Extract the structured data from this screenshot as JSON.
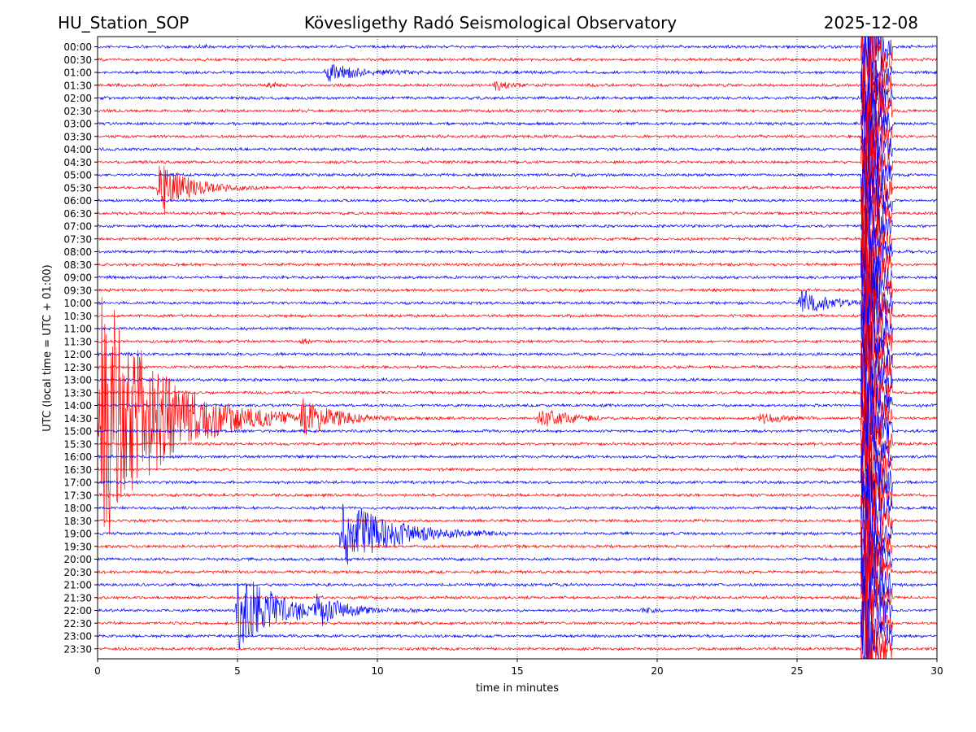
{
  "header": {
    "station": "HU_Station_SOP",
    "observatory": "Köveslige­thy Radó Seismological Observatory",
    "date": "2025-12-08"
  },
  "chart_data": {
    "type": "line",
    "title": "Köveslige­thy Radó Seismological Observatory",
    "xlabel": "time in minutes",
    "ylabel": "UTC (local time = UTC + 01:00)",
    "xlim": [
      0,
      30
    ],
    "xticks": [
      "0",
      "5",
      "10",
      "15",
      "20",
      "25",
      "30"
    ],
    "xtick_values": [
      0,
      5,
      10,
      15,
      20,
      25,
      30
    ],
    "grid": "vertical dotted",
    "series_colors": [
      "#0000ff",
      "#ff0000"
    ],
    "rows": [
      "00:00",
      "00:30",
      "01:00",
      "01:30",
      "02:00",
      "02:30",
      "03:00",
      "03:30",
      "04:00",
      "04:30",
      "05:00",
      "05:30",
      "06:00",
      "06:30",
      "07:00",
      "07:30",
      "08:00",
      "08:30",
      "09:00",
      "09:30",
      "10:00",
      "10:30",
      "11:00",
      "11:30",
      "12:00",
      "12:30",
      "13:00",
      "13:30",
      "14:00",
      "14:30",
      "15:00",
      "15:30",
      "16:00",
      "16:30",
      "17:00",
      "17:30",
      "18:00",
      "18:30",
      "19:00",
      "19:30",
      "20:00",
      "20:30",
      "21:00",
      "21:30",
      "22:00",
      "22:30",
      "23:00",
      "23:30"
    ],
    "base_noise": 1.5,
    "events": [
      {
        "row": "00:00",
        "start_min": 3.6,
        "duration_min": 0.3,
        "amplitude": 3,
        "decay_min": 0.2
      },
      {
        "row": "01:00",
        "start_min": 8.1,
        "duration_min": 3.5,
        "amplitude": 12,
        "decay_min": 1.2
      },
      {
        "row": "01:30",
        "start_min": 6.0,
        "duration_min": 0.8,
        "amplitude": 4,
        "decay_min": 0.4
      },
      {
        "row": "01:30",
        "start_min": 14.1,
        "duration_min": 1.3,
        "amplitude": 8,
        "decay_min": 0.5
      },
      {
        "row": "05:30",
        "start_min": 2.1,
        "duration_min": 4.0,
        "amplitude": 40,
        "decay_min": 1.0
      },
      {
        "row": "10:00",
        "start_min": 25.0,
        "duration_min": 2.3,
        "amplitude": 18,
        "decay_min": 1.0
      },
      {
        "row": "11:30",
        "start_min": 7.2,
        "duration_min": 0.8,
        "amplitude": 4,
        "decay_min": 0.4
      },
      {
        "row": "14:30",
        "start_min": 0.0,
        "duration_min": 14.0,
        "amplitude": 180,
        "decay_min": 2.0
      },
      {
        "row": "14:30",
        "start_min": 7.2,
        "duration_min": 2.5,
        "amplitude": 22,
        "decay_min": 1.0
      },
      {
        "row": "14:30",
        "start_min": 15.7,
        "duration_min": 2.3,
        "amplitude": 15,
        "decay_min": 1.0
      },
      {
        "row": "14:30",
        "start_min": 23.6,
        "duration_min": 2.0,
        "amplitude": 8,
        "decay_min": 0.8
      },
      {
        "row": "19:00",
        "start_min": 8.6,
        "duration_min": 6.0,
        "amplitude": 50,
        "decay_min": 1.6
      },
      {
        "row": "22:00",
        "start_min": 4.9,
        "duration_min": 6.5,
        "amplitude": 55,
        "decay_min": 1.4
      },
      {
        "row": "22:00",
        "start_min": 7.7,
        "duration_min": 2.5,
        "amplitude": 18,
        "decay_min": 0.8
      },
      {
        "row": "22:00",
        "start_min": 19.4,
        "duration_min": 0.8,
        "amplitude": 4,
        "decay_min": 0.4
      }
    ],
    "saturated_band": {
      "start_min": 27.3,
      "end_min": 28.4,
      "from_row": "00:00",
      "to_row": "23:30",
      "peak_min": 27.5
    }
  }
}
